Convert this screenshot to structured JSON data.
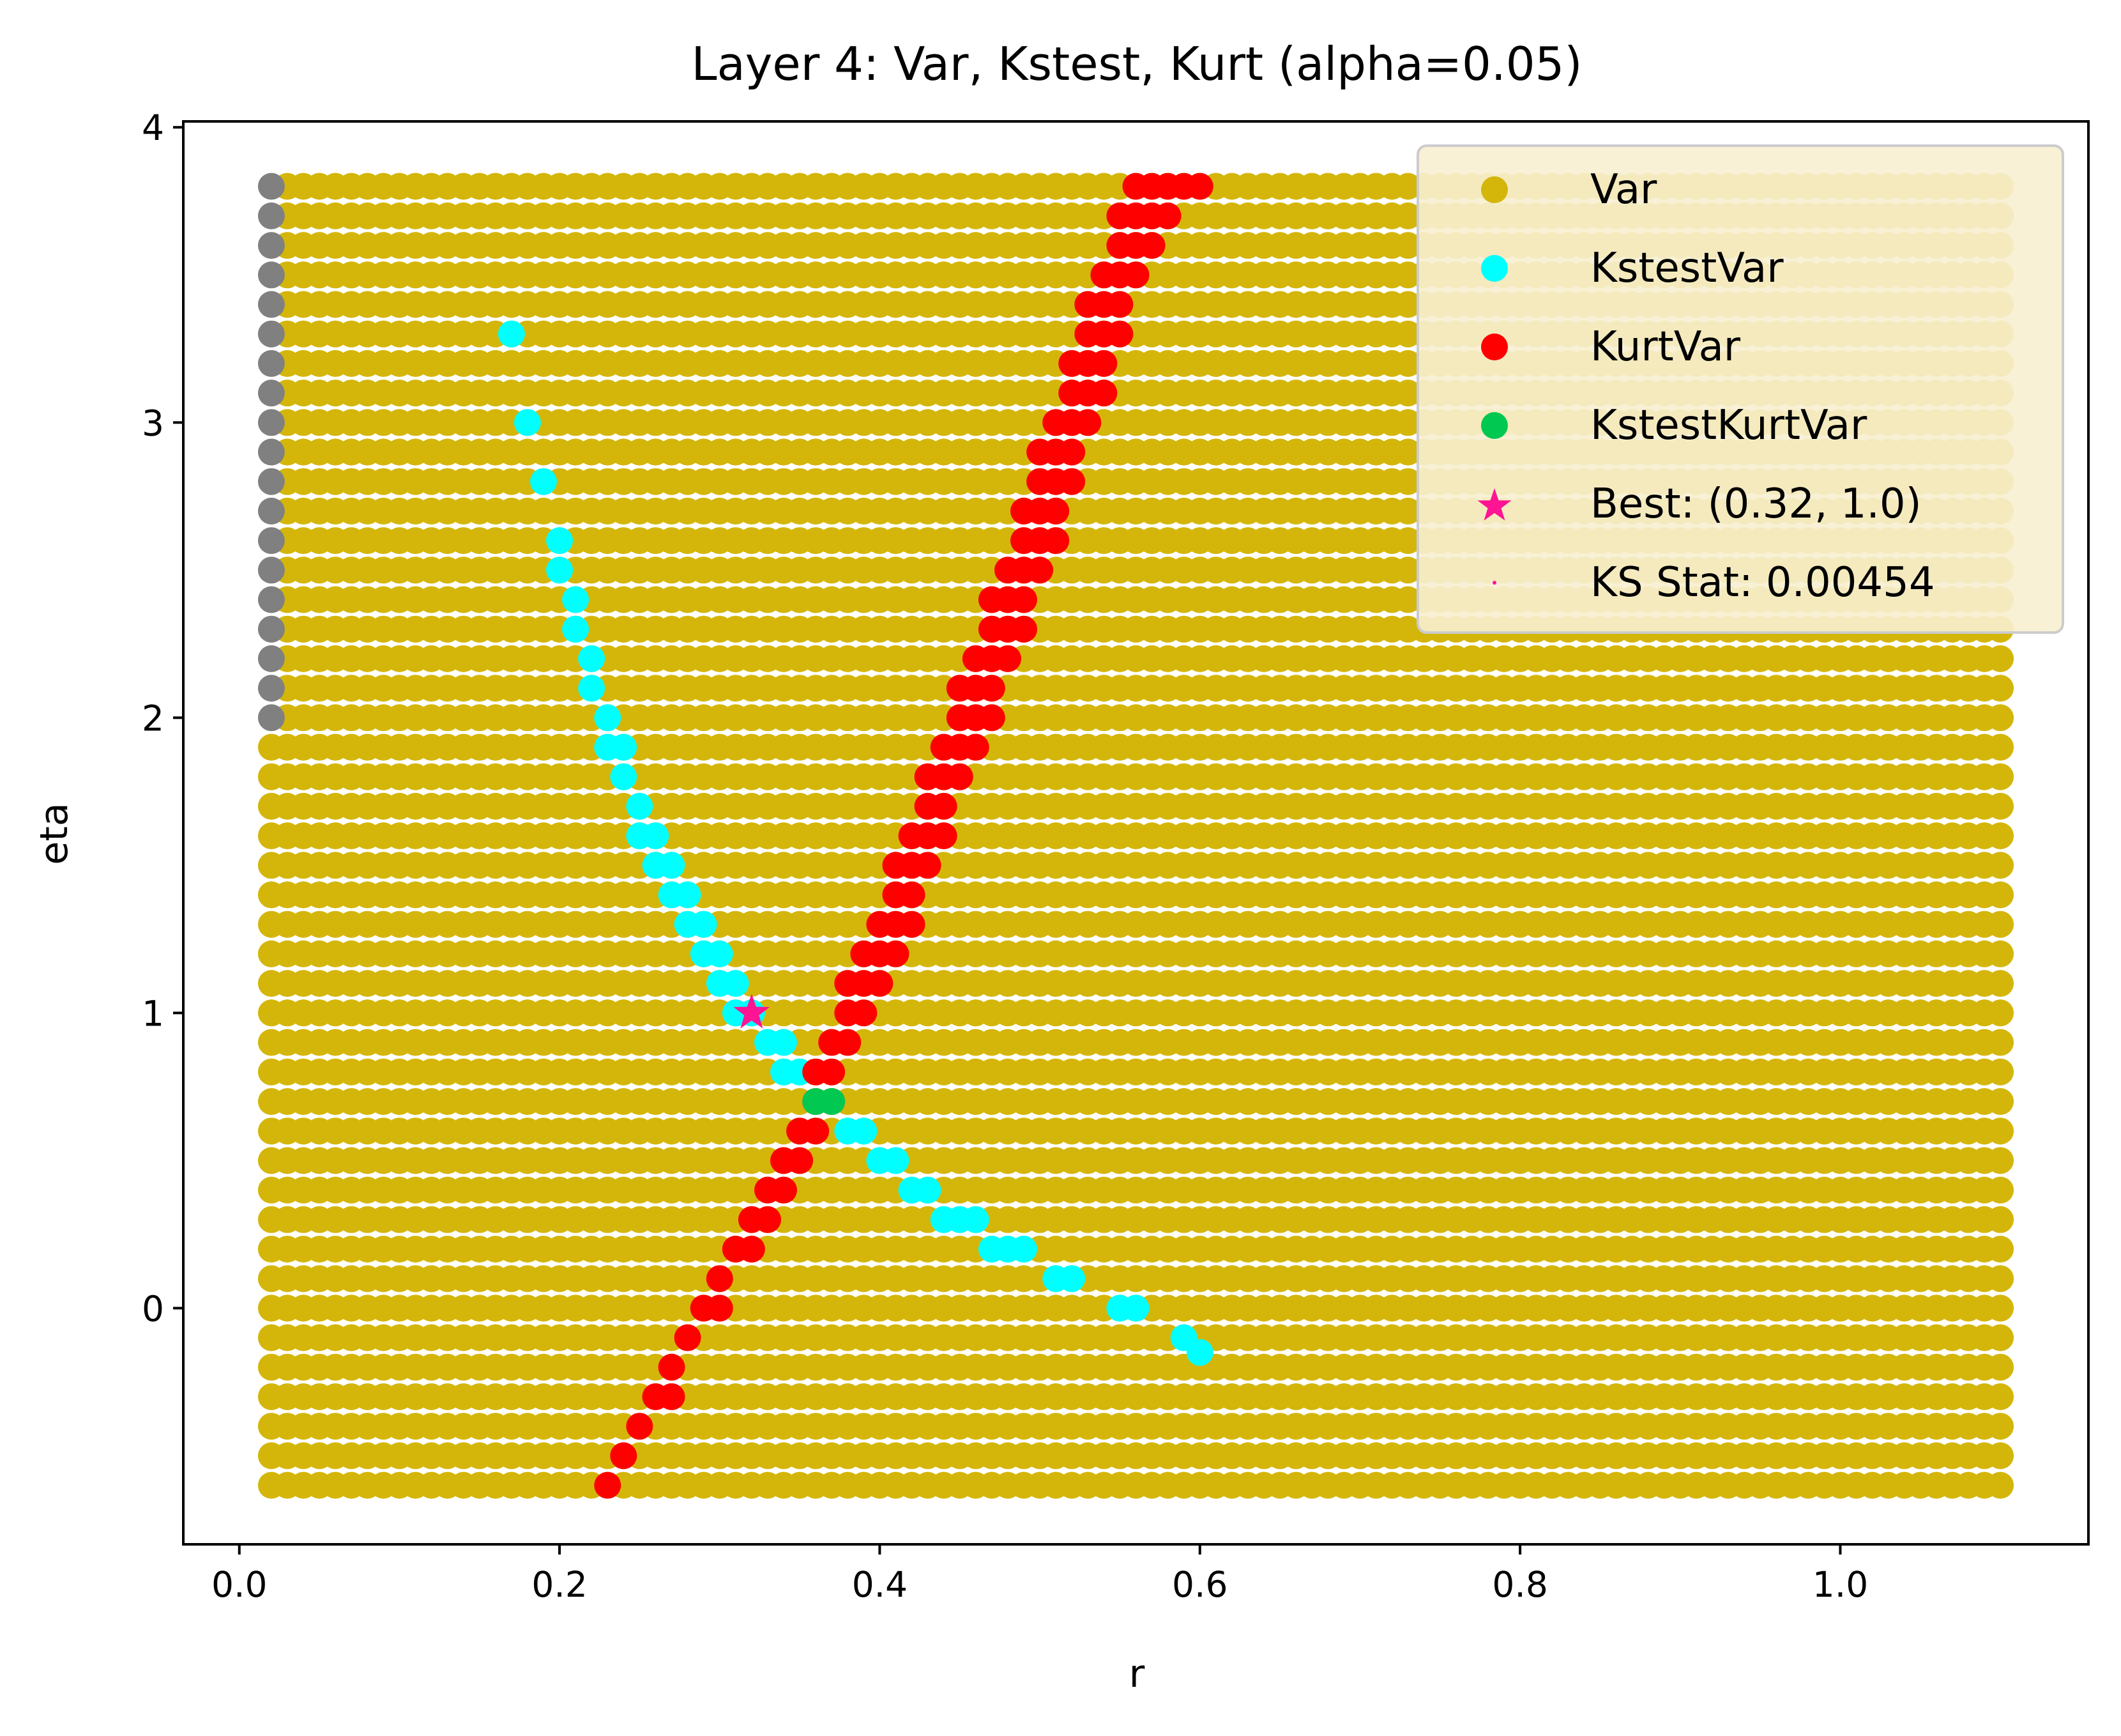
{
  "chart_data": {
    "type": "scatter",
    "title": "Layer 4: Var, Kstest, Kurt (alpha=0.05)",
    "xlabel": "r",
    "ylabel": "eta",
    "xlim": [
      -0.035,
      1.155
    ],
    "ylim": [
      -0.8,
      4.02
    ],
    "xticks": [
      {
        "value": 0.0,
        "label": "0.0"
      },
      {
        "value": 0.2,
        "label": "0.2"
      },
      {
        "value": 0.4,
        "label": "0.4"
      },
      {
        "value": 0.6,
        "label": "0.6"
      },
      {
        "value": 0.8,
        "label": "0.8"
      },
      {
        "value": 1.0,
        "label": "1.0"
      }
    ],
    "yticks": [
      {
        "value": 0,
        "label": "0"
      },
      {
        "value": 1,
        "label": "1"
      },
      {
        "value": 2,
        "label": "2"
      },
      {
        "value": 3,
        "label": "3"
      },
      {
        "value": 4,
        "label": "4"
      }
    ],
    "grid": false,
    "legend_position": "top-right",
    "grid_points": {
      "r_min": 0.02,
      "r_max": 1.1,
      "r_step": 0.01,
      "eta_min": -0.6,
      "eta_max": 3.8,
      "eta_step": 0.1
    },
    "series": [
      {
        "name": "Var",
        "color": "#d4b60a",
        "marker": "circle",
        "region": "full grid",
        "excluded_region": {
          "r_max": 0.02,
          "eta_min": 2.0
        }
      },
      {
        "name": "",
        "color": "#808080",
        "marker": "circle",
        "region": {
          "r": [
            0.02,
            0.02
          ],
          "eta": [
            2.0,
            3.8
          ]
        }
      },
      {
        "name": "KstestVar",
        "color": "#00ffff",
        "marker": "circle",
        "points": [
          [
            0.17,
            3.3
          ],
          [
            0.18,
            3.0
          ],
          [
            0.19,
            2.8
          ],
          [
            0.2,
            2.6
          ],
          [
            0.2,
            2.5
          ],
          [
            0.21,
            2.4
          ],
          [
            0.21,
            2.3
          ],
          [
            0.22,
            2.2
          ],
          [
            0.22,
            2.1
          ],
          [
            0.23,
            2.0
          ],
          [
            0.23,
            1.9
          ],
          [
            0.24,
            1.9
          ],
          [
            0.24,
            1.8
          ],
          [
            0.25,
            1.7
          ],
          [
            0.25,
            1.6
          ],
          [
            0.26,
            1.6
          ],
          [
            0.26,
            1.5
          ],
          [
            0.27,
            1.5
          ],
          [
            0.27,
            1.4
          ],
          [
            0.28,
            1.4
          ],
          [
            0.28,
            1.3
          ],
          [
            0.29,
            1.3
          ],
          [
            0.29,
            1.2
          ],
          [
            0.3,
            1.2
          ],
          [
            0.3,
            1.1
          ],
          [
            0.31,
            1.1
          ],
          [
            0.31,
            1.0
          ],
          [
            0.32,
            1.0
          ],
          [
            0.33,
            0.9
          ],
          [
            0.34,
            0.9
          ],
          [
            0.34,
            0.8
          ],
          [
            0.35,
            0.8
          ],
          [
            0.38,
            0.6
          ],
          [
            0.39,
            0.6
          ],
          [
            0.4,
            0.5
          ],
          [
            0.41,
            0.5
          ],
          [
            0.42,
            0.4
          ],
          [
            0.43,
            0.4
          ],
          [
            0.44,
            0.3
          ],
          [
            0.45,
            0.3
          ],
          [
            0.46,
            0.3
          ],
          [
            0.47,
            0.2
          ],
          [
            0.48,
            0.2
          ],
          [
            0.49,
            0.2
          ],
          [
            0.51,
            0.1
          ],
          [
            0.52,
            0.1
          ],
          [
            0.55,
            0.0
          ],
          [
            0.56,
            0.0
          ],
          [
            0.59,
            -0.1
          ],
          [
            0.6,
            -0.15
          ]
        ]
      },
      {
        "name": "KurtVar",
        "color": "#ff0000",
        "marker": "circle",
        "points": [
          [
            0.23,
            -0.6
          ],
          [
            0.24,
            -0.5
          ],
          [
            0.25,
            -0.4
          ],
          [
            0.26,
            -0.3
          ],
          [
            0.27,
            -0.3
          ],
          [
            0.27,
            -0.2
          ],
          [
            0.28,
            -0.1
          ],
          [
            0.29,
            0.0
          ],
          [
            0.3,
            0.0
          ],
          [
            0.3,
            0.1
          ],
          [
            0.31,
            0.2
          ],
          [
            0.32,
            0.2
          ],
          [
            0.32,
            0.3
          ],
          [
            0.33,
            0.3
          ],
          [
            0.33,
            0.4
          ],
          [
            0.34,
            0.4
          ],
          [
            0.34,
            0.5
          ],
          [
            0.35,
            0.5
          ],
          [
            0.35,
            0.6
          ],
          [
            0.36,
            0.6
          ],
          [
            0.36,
            0.7
          ],
          [
            0.37,
            0.7
          ],
          [
            0.36,
            0.8
          ],
          [
            0.37,
            0.8
          ],
          [
            0.37,
            0.9
          ],
          [
            0.38,
            0.9
          ],
          [
            0.38,
            1.0
          ],
          [
            0.39,
            1.0
          ],
          [
            0.38,
            1.1
          ],
          [
            0.39,
            1.1
          ],
          [
            0.4,
            1.1
          ],
          [
            0.39,
            1.2
          ],
          [
            0.4,
            1.2
          ],
          [
            0.41,
            1.2
          ],
          [
            0.4,
            1.3
          ],
          [
            0.41,
            1.3
          ],
          [
            0.42,
            1.3
          ],
          [
            0.41,
            1.4
          ],
          [
            0.42,
            1.4
          ],
          [
            0.41,
            1.5
          ],
          [
            0.42,
            1.5
          ],
          [
            0.43,
            1.5
          ],
          [
            0.42,
            1.6
          ],
          [
            0.43,
            1.6
          ],
          [
            0.44,
            1.6
          ],
          [
            0.43,
            1.7
          ],
          [
            0.44,
            1.7
          ],
          [
            0.43,
            1.8
          ],
          [
            0.44,
            1.8
          ],
          [
            0.45,
            1.8
          ],
          [
            0.44,
            1.9
          ],
          [
            0.45,
            1.9
          ],
          [
            0.46,
            1.9
          ],
          [
            0.45,
            2.0
          ],
          [
            0.46,
            2.0
          ],
          [
            0.47,
            2.0
          ],
          [
            0.45,
            2.1
          ],
          [
            0.46,
            2.1
          ],
          [
            0.47,
            2.1
          ],
          [
            0.46,
            2.2
          ],
          [
            0.47,
            2.2
          ],
          [
            0.48,
            2.2
          ],
          [
            0.47,
            2.3
          ],
          [
            0.48,
            2.3
          ],
          [
            0.49,
            2.3
          ],
          [
            0.47,
            2.4
          ],
          [
            0.48,
            2.4
          ],
          [
            0.49,
            2.4
          ],
          [
            0.48,
            2.5
          ],
          [
            0.49,
            2.5
          ],
          [
            0.5,
            2.5
          ],
          [
            0.49,
            2.6
          ],
          [
            0.5,
            2.6
          ],
          [
            0.51,
            2.6
          ],
          [
            0.49,
            2.7
          ],
          [
            0.5,
            2.7
          ],
          [
            0.51,
            2.7
          ],
          [
            0.5,
            2.8
          ],
          [
            0.51,
            2.8
          ],
          [
            0.52,
            2.8
          ],
          [
            0.5,
            2.9
          ],
          [
            0.51,
            2.9
          ],
          [
            0.52,
            2.9
          ],
          [
            0.51,
            3.0
          ],
          [
            0.52,
            3.0
          ],
          [
            0.53,
            3.0
          ],
          [
            0.52,
            3.1
          ],
          [
            0.53,
            3.1
          ],
          [
            0.54,
            3.1
          ],
          [
            0.52,
            3.2
          ],
          [
            0.53,
            3.2
          ],
          [
            0.54,
            3.2
          ],
          [
            0.53,
            3.3
          ],
          [
            0.54,
            3.3
          ],
          [
            0.55,
            3.3
          ],
          [
            0.53,
            3.4
          ],
          [
            0.54,
            3.4
          ],
          [
            0.55,
            3.4
          ],
          [
            0.54,
            3.5
          ],
          [
            0.55,
            3.5
          ],
          [
            0.56,
            3.5
          ],
          [
            0.55,
            3.6
          ],
          [
            0.56,
            3.6
          ],
          [
            0.57,
            3.6
          ],
          [
            0.55,
            3.7
          ],
          [
            0.56,
            3.7
          ],
          [
            0.57,
            3.7
          ],
          [
            0.58,
            3.7
          ],
          [
            0.56,
            3.8
          ],
          [
            0.57,
            3.8
          ],
          [
            0.58,
            3.8
          ],
          [
            0.59,
            3.8
          ],
          [
            0.6,
            3.8
          ]
        ]
      },
      {
        "name": "KstestKurtVar",
        "color": "#00c850",
        "marker": "circle",
        "points": [
          [
            0.36,
            0.7
          ],
          [
            0.37,
            0.7
          ]
        ]
      },
      {
        "name": "Best: (0.32, 1.0)",
        "color": "#ff1493",
        "marker": "star",
        "points": [
          [
            0.32,
            1.0
          ]
        ]
      },
      {
        "name": "KS Stat: 0.00454",
        "color": "#ff1493",
        "marker": "dot",
        "points": []
      }
    ]
  }
}
